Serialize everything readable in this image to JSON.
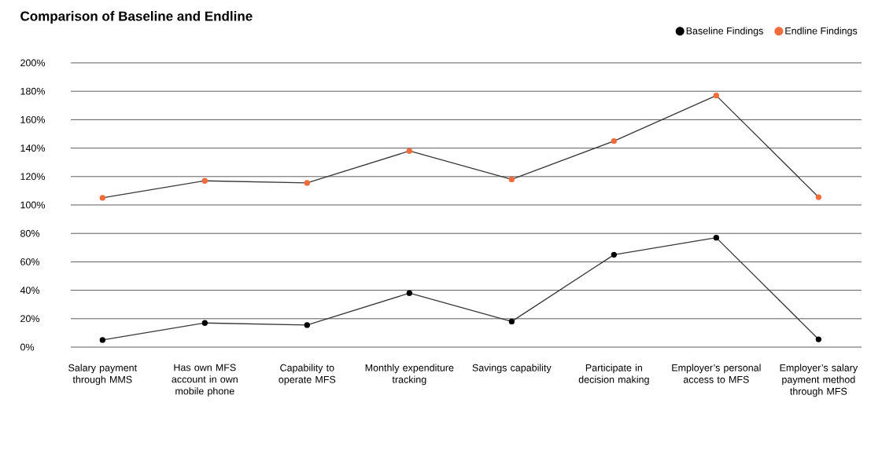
{
  "chart_data": {
    "type": "line",
    "title": "Comparison of Baseline and Endline",
    "categories": [
      "Salary payment through MMS",
      "Has own MFS account in own mobile phone",
      "Capability to operate MFS",
      "Monthly expenditure tracking",
      "Savings capability",
      "Participate in decision making",
      "Employer’s personal access to MFS",
      "Employer’s salary payment method through MFS"
    ],
    "series": [
      {
        "name": "Baseline Findings",
        "color": "#000000",
        "values": [
          5,
          17,
          15.5,
          38,
          18,
          65,
          77,
          5.5
        ]
      },
      {
        "name": "Endline Findings",
        "color": "#f26b3a",
        "values": [
          105,
          117,
          115.5,
          138,
          118,
          145,
          177,
          105.5
        ]
      }
    ],
    "ylim": [
      0,
      200
    ],
    "yticks": [
      {
        "value": 0,
        "label": "0%"
      },
      {
        "value": 20,
        "label": "20%"
      },
      {
        "value": 40,
        "label": "40%"
      },
      {
        "value": 60,
        "label": "60%"
      },
      {
        "value": 80,
        "label": "80%"
      },
      {
        "value": 100,
        "label": "100%"
      },
      {
        "value": 120,
        "label": "120%"
      },
      {
        "value": 140,
        "label": "140%"
      },
      {
        "value": 160,
        "label": "160%"
      },
      {
        "value": 180,
        "label": "180%"
      },
      {
        "value": 200,
        "label": "200%"
      }
    ],
    "grid": "y",
    "legend": "top right",
    "marker": "circle",
    "line_style": "solid"
  }
}
